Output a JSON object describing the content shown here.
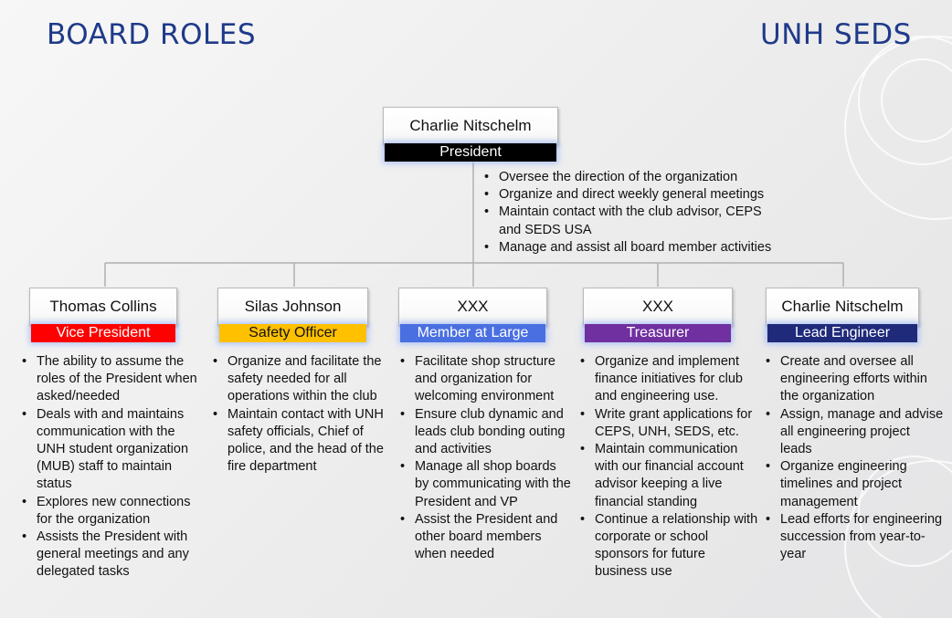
{
  "titles": {
    "left": "BOARD ROLES",
    "right": "UNH SEDS"
  },
  "colors": {
    "title": "#1f3a8a",
    "president_bar": "#000000",
    "connector": "#b0b0b0"
  },
  "president": {
    "name": "Charlie Nitschelm",
    "role": "President",
    "duties": [
      "Oversee the direction of the organization",
      "Organize and direct weekly general meetings",
      "Maintain contact with the club advisor, CEPS and SEDS USA",
      "Manage and assist all board member activities"
    ]
  },
  "members": [
    {
      "name": "Thomas Collins",
      "role": "Vice President",
      "role_color": "#ff0000",
      "role_text_color": "#ffffff",
      "duties": [
        "The ability to assume the roles of the President when asked/needed",
        "Deals with and maintains communication with the UNH student organization (MUB) staff to maintain status",
        "Explores new connections for the organization",
        "Assists the President with general meetings and any delegated tasks"
      ]
    },
    {
      "name": "Silas Johnson",
      "role": "Safety Officer",
      "role_color": "#ffc000",
      "role_text_color": "#111111",
      "duties": [
        "Organize and facilitate the safety needed for all operations within the club",
        "Maintain contact with UNH safety officials, Chief of police, and the head of the fire department"
      ]
    },
    {
      "name": "XXX",
      "role": "Member at Large",
      "role_color": "#4a6fe0",
      "role_text_color": "#ffffff",
      "duties": [
        "Facilitate shop structure and organization for welcoming environment",
        "Ensure club dynamic and leads club bonding outing and activities",
        "Manage all shop boards by communicating with the President and VP",
        "Assist the President and other board members when needed"
      ]
    },
    {
      "name": "XXX",
      "role": "Treasurer",
      "role_color": "#7030a0",
      "role_text_color": "#ffffff",
      "duties": [
        "Organize and implement finance initiatives for club and engineering use.",
        "Write grant applications for CEPS, UNH, SEDS, etc.",
        "Maintain communication with our financial account advisor keeping a live financial standing",
        "Continue a relationship with corporate or school sponsors for future business use"
      ]
    },
    {
      "name": "Charlie Nitschelm",
      "role": "Lead Engineer",
      "role_color": "#1f2a7a",
      "role_text_color": "#ffffff",
      "duties": [
        "Create and oversee all engineering efforts within the organization",
        "Assign, manage and advise all engineering project leads",
        "Organize engineering timelines and project management",
        "Lead efforts for engineering succession from year-to-year"
      ]
    }
  ]
}
